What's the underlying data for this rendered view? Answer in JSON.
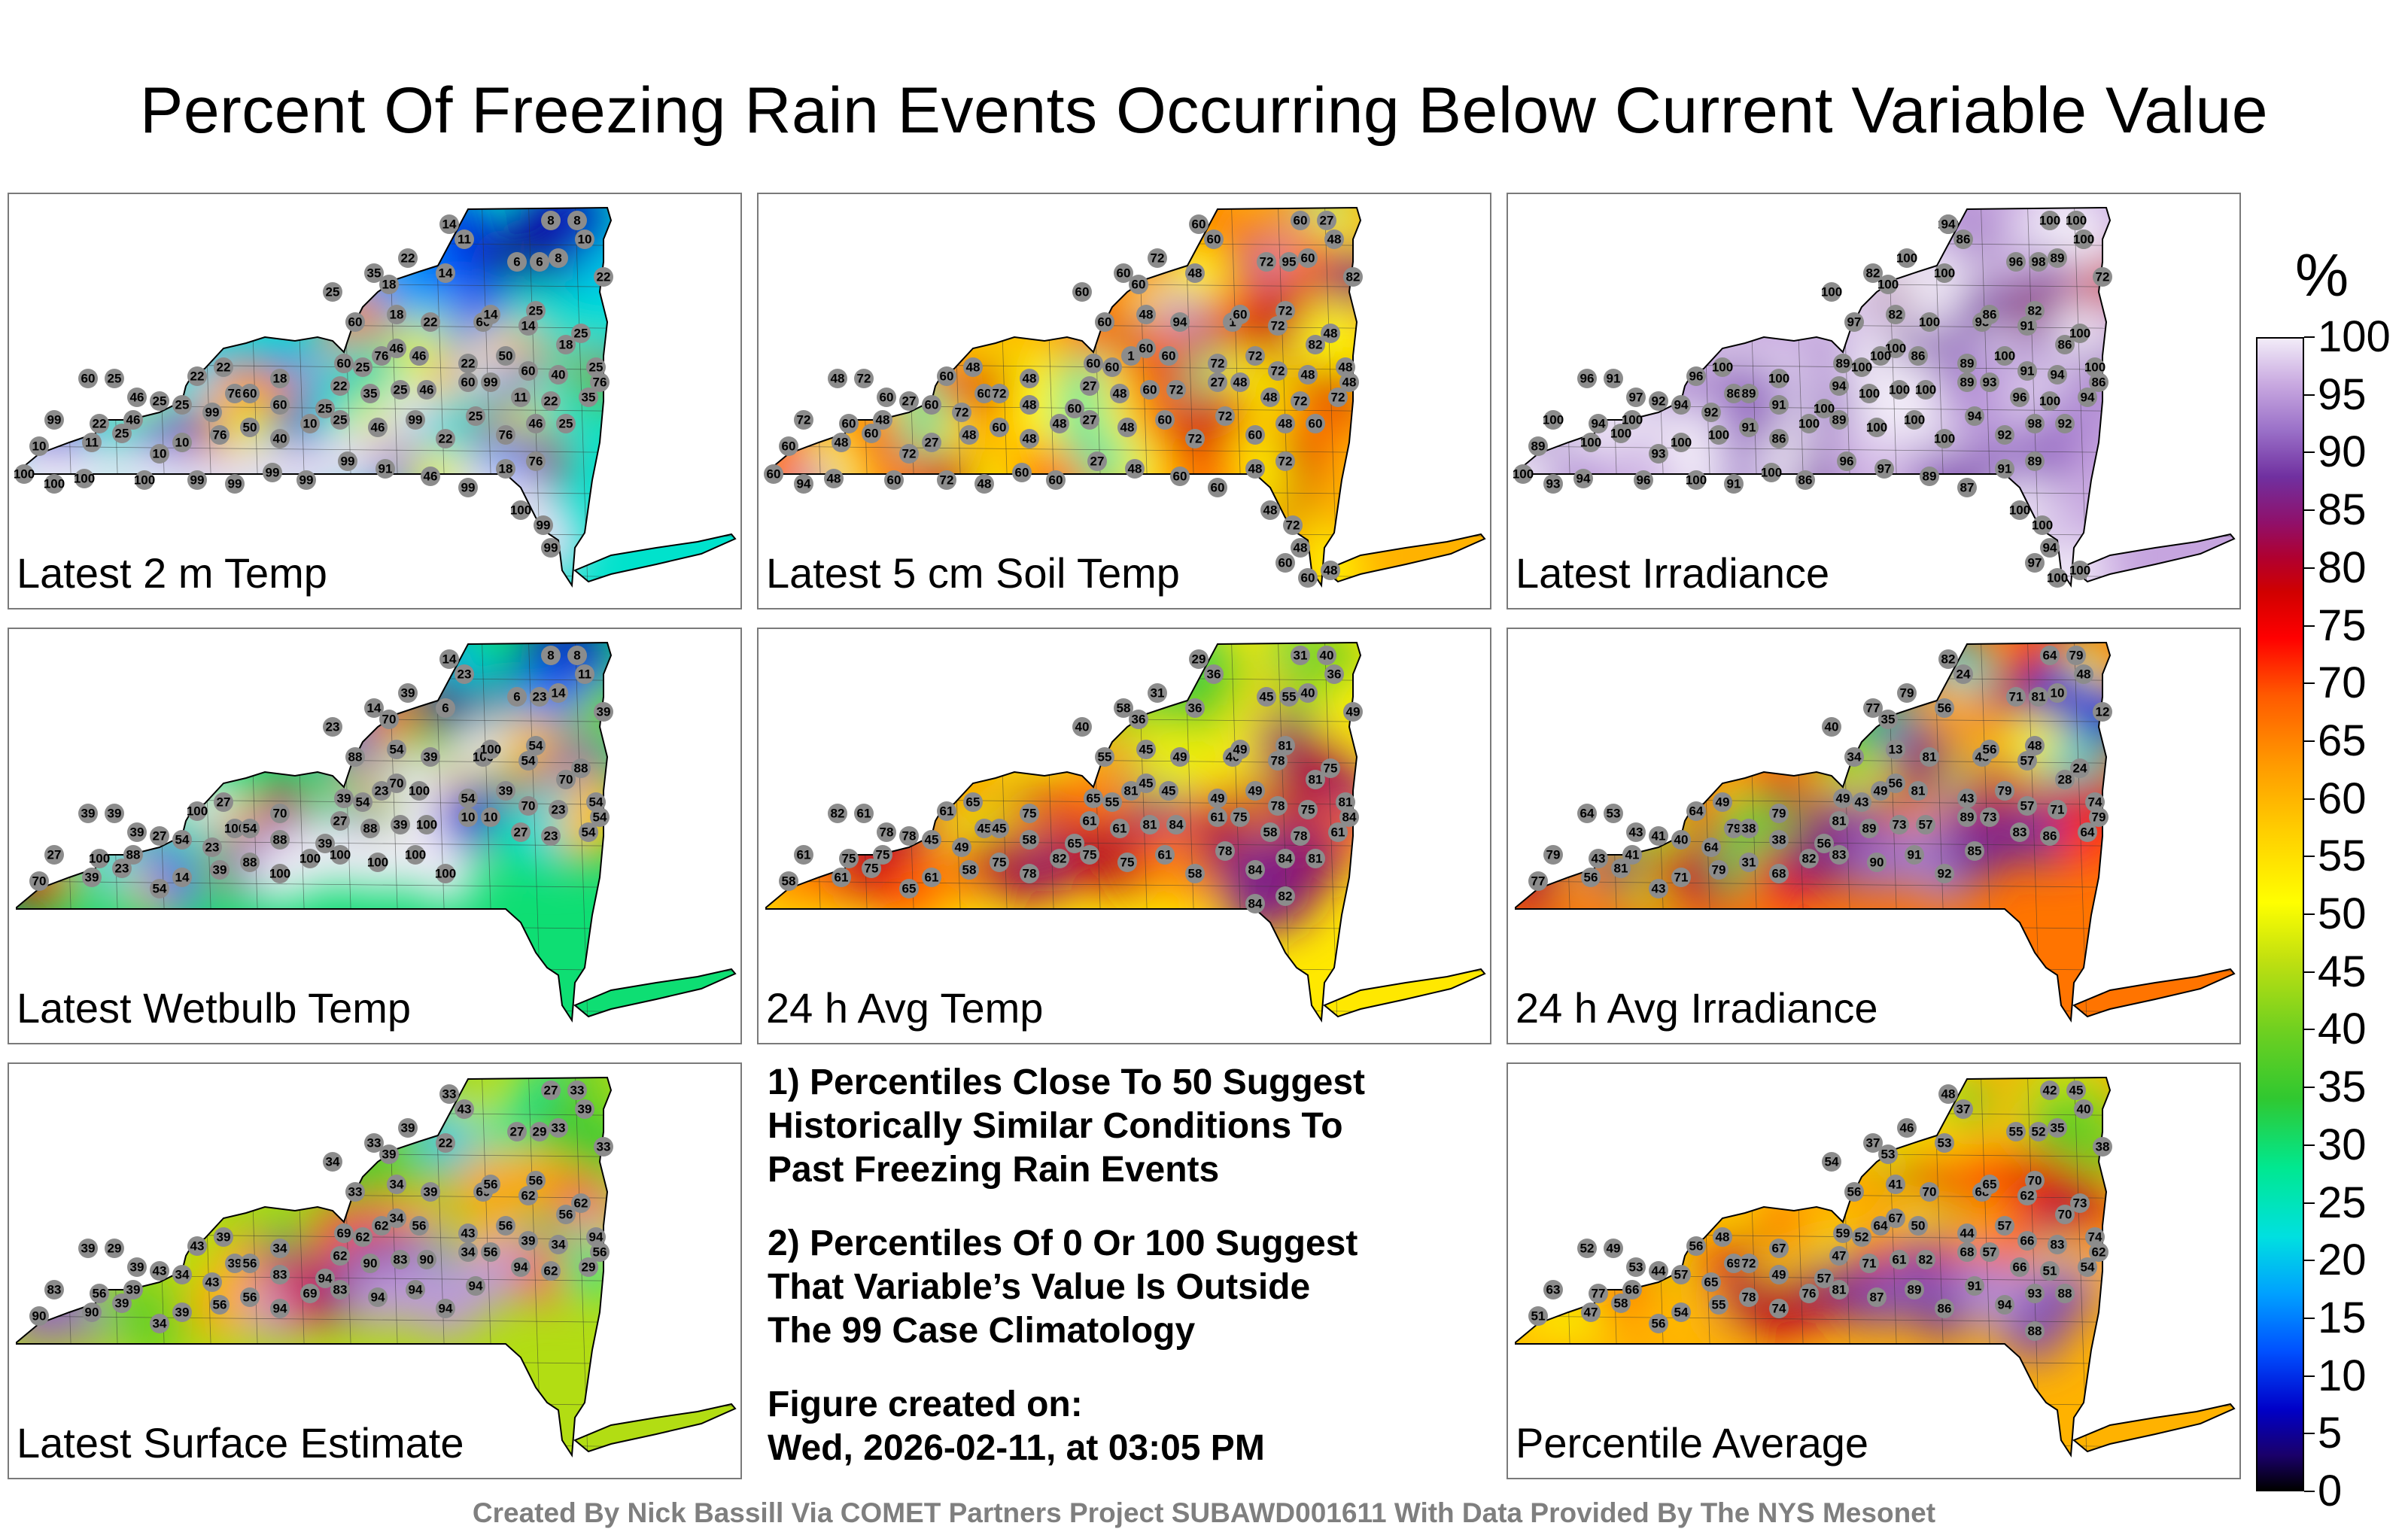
{
  "title": "Percent Of Freezing Rain Events Occurring Below Current Variable Value",
  "footer": "Created By Nick Bassill Via COMET Partners Project SUBAWD001611 With Data Provided By The NYS Mesonet",
  "notes": {
    "note1": [
      "1) Percentiles Close To 50 Suggest",
      "Historically Similar Conditions To",
      "Past Freezing Rain Events"
    ],
    "note2": [
      "2) Percentiles Of 0 Or 100 Suggest",
      "That Variable’s Value Is Outside",
      "The 99 Case Climatology"
    ],
    "created": [
      "Figure created on:",
      "Wed, 2026-02-11, at 03:05 PM"
    ]
  },
  "colorbar": {
    "unit": "%",
    "ticks": [
      "100",
      "95",
      "90",
      "85",
      "80",
      "75",
      "70",
      "65",
      "60",
      "55",
      "50",
      "45",
      "40",
      "35",
      "30",
      "25",
      "20",
      "15",
      "10",
      "5",
      "0"
    ],
    "range": [
      0,
      100
    ],
    "colors": [
      "#000000",
      "#1a006a",
      "#0000c8",
      "#0050ff",
      "#00a0ff",
      "#00e0e0",
      "#00e890",
      "#30c830",
      "#70d020",
      "#c0e010",
      "#ffff00",
      "#ffd000",
      "#ff9a00",
      "#ff5a00",
      "#ff0000",
      "#d00000",
      "#b00030",
      "#90106a",
      "#7030a0",
      "#9a70c8",
      "#c8a8e0",
      "#f2ecf8"
    ]
  },
  "chart_data": [
    {
      "type": "heatmap",
      "title": "Latest 2 m Temp",
      "base_value": 25,
      "station_values": [
        14,
        8,
        8,
        10,
        11,
        22,
        35,
        14,
        6,
        6,
        25,
        18,
        8,
        22,
        18,
        60,
        46,
        22,
        60,
        14,
        14,
        25,
        18,
        25,
        76,
        60,
        25,
        46,
        22,
        50,
        60,
        40,
        25,
        76,
        18,
        22,
        22,
        76,
        25,
        99,
        60,
        60,
        25,
        22,
        35,
        25,
        46,
        60,
        99,
        11,
        22,
        35,
        60,
        25,
        46,
        25,
        46,
        22,
        99,
        10,
        11,
        25,
        10,
        10,
        76,
        50,
        40,
        10,
        25,
        46,
        99,
        22,
        25,
        76,
        46,
        25,
        76,
        18,
        99,
        46,
        91,
        99,
        99,
        99,
        99,
        99,
        100,
        100,
        100,
        100,
        100,
        99,
        99
      ]
    },
    {
      "type": "heatmap",
      "title": "Latest 5 cm Soil Temp",
      "base_value": 55,
      "station_values": [
        60,
        60,
        27,
        48,
        60,
        72,
        60,
        48,
        72,
        95,
        60,
        60,
        60,
        82,
        48,
        60,
        60,
        94,
        1,
        60,
        72,
        72,
        82,
        48,
        1,
        60,
        60,
        60,
        72,
        72,
        72,
        48,
        48,
        48,
        48,
        48,
        60,
        60,
        60,
        72,
        72,
        48,
        60,
        27,
        48,
        60,
        72,
        27,
        48,
        48,
        72,
        72,
        48,
        72,
        60,
        27,
        48,
        60,
        72,
        60,
        48,
        60,
        72,
        27,
        48,
        60,
        48,
        48,
        27,
        48,
        60,
        72,
        72,
        60,
        48,
        60,
        72,
        48,
        60,
        60,
        48,
        27,
        60,
        60,
        48,
        72,
        60,
        48,
        94,
        60,
        48,
        72,
        48,
        60,
        60,
        48
      ]
    },
    {
      "type": "heatmap",
      "title": "Latest Irradiance",
      "base_value": 95,
      "station_values": [
        100,
        98,
        96,
        100,
        86,
        100,
        82,
        100,
        96,
        98,
        100,
        100,
        89,
        72,
        82,
        97,
        100,
        100,
        93,
        86,
        91,
        82,
        86,
        100,
        100,
        89,
        100,
        86,
        89,
        100,
        91,
        94,
        100,
        86,
        100,
        100,
        96,
        86,
        94,
        92,
        89,
        91,
        100,
        94,
        100,
        100,
        100,
        89,
        93,
        96,
        100,
        94,
        96,
        91,
        97,
        92,
        100,
        94,
        100,
        89,
        100,
        100,
        93,
        100,
        100,
        91,
        86,
        100,
        89,
        100,
        100,
        100,
        94,
        92,
        98,
        92,
        89,
        91,
        87,
        89,
        97,
        96,
        86,
        100,
        91,
        100,
        96,
        94,
        93,
        100,
        100,
        100,
        94,
        97,
        100,
        100,
        94,
        100,
        100,
        100
      ]
    },
    {
      "type": "heatmap",
      "title": "Latest Wetbulb Temp",
      "base_value": 30,
      "station_values": [
        14,
        8,
        8,
        11,
        23,
        39,
        14,
        6,
        6,
        23,
        23,
        70,
        14,
        39,
        54,
        88,
        70,
        39,
        100,
        100,
        54,
        54,
        70,
        88,
        23,
        39,
        54,
        100,
        54,
        39,
        70,
        23,
        54,
        54,
        70,
        27,
        100,
        100,
        54,
        23,
        54,
        88,
        39,
        27,
        88,
        39,
        100,
        10,
        10,
        27,
        23,
        54,
        39,
        39,
        39,
        27,
        88,
        100,
        27,
        70,
        39,
        23,
        54,
        14,
        39,
        88,
        100,
        100,
        100,
        100,
        100,
        100
      ]
    },
    {
      "type": "heatmap",
      "title": "24 h Avg Temp",
      "base_value": 50,
      "station_values": [
        29,
        31,
        40,
        36,
        36,
        31,
        58,
        36,
        45,
        55,
        40,
        36,
        40,
        49,
        45,
        55,
        45,
        49,
        40,
        49,
        78,
        81,
        81,
        75,
        81,
        65,
        55,
        45,
        49,
        49,
        78,
        75,
        81,
        84,
        75,
        65,
        61,
        45,
        45,
        49,
        45,
        58,
        65,
        61,
        61,
        81,
        84,
        61,
        75,
        58,
        78,
        61,
        82,
        61,
        78,
        78,
        75,
        75,
        61,
        58,
        61,
        75,
        65,
        61,
        58,
        75,
        78,
        82,
        75,
        75,
        61,
        58,
        78,
        84,
        84,
        81,
        82,
        84
      ]
    },
    {
      "type": "heatmap",
      "title": "24 h Avg Irradiance",
      "base_value": 60,
      "station_values": [
        82,
        64,
        79,
        48,
        24,
        79,
        77,
        56,
        71,
        81,
        40,
        35,
        10,
        12,
        13,
        34,
        56,
        81,
        43,
        56,
        57,
        48,
        28,
        24,
        49,
        49,
        43,
        81,
        43,
        79,
        57,
        71,
        74,
        79,
        79,
        49,
        64,
        79,
        40,
        64,
        38,
        38,
        56,
        81,
        89,
        73,
        57,
        89,
        73,
        83,
        86,
        64,
        64,
        53,
        43,
        41,
        41,
        43,
        79,
        77,
        56,
        81,
        43,
        71,
        79,
        31,
        68,
        82,
        83,
        90,
        91,
        92,
        85
      ]
    },
    {
      "type": "heatmap",
      "title": "Latest Surface Estimate",
      "base_value": 42,
      "station_values": [
        33,
        27,
        33,
        39,
        43,
        39,
        33,
        22,
        27,
        29,
        34,
        39,
        33,
        33,
        34,
        33,
        34,
        39,
        69,
        56,
        62,
        56,
        56,
        62,
        62,
        69,
        62,
        56,
        43,
        56,
        39,
        34,
        94,
        56,
        34,
        39,
        43,
        39,
        34,
        43,
        56,
        83,
        94,
        62,
        90,
        83,
        90,
        34,
        56,
        94,
        62,
        29,
        39,
        29,
        39,
        43,
        39,
        56,
        83,
        90,
        90,
        39,
        34,
        39,
        56,
        56,
        94,
        69,
        83,
        94,
        94,
        94,
        94
      ]
    },
    {
      "type": "heatmap",
      "title": "Percentile Average",
      "base_value": 55,
      "station_values": [
        48,
        42,
        45,
        40,
        37,
        46,
        37,
        53,
        55,
        52,
        54,
        53,
        35,
        38,
        41,
        56,
        67,
        70,
        68,
        65,
        62,
        70,
        70,
        73,
        64,
        59,
        52,
        50,
        44,
        57,
        66,
        83,
        74,
        62,
        67,
        48,
        56,
        69,
        57,
        65,
        72,
        49,
        57,
        47,
        71,
        61,
        82,
        68,
        57,
        66,
        51,
        54,
        52,
        49,
        53,
        44,
        66,
        77,
        63,
        51,
        47,
        58,
        56,
        54,
        55,
        78,
        74,
        76,
        81,
        87,
        89,
        86,
        91,
        94,
        93,
        88,
        88
      ]
    }
  ]
}
